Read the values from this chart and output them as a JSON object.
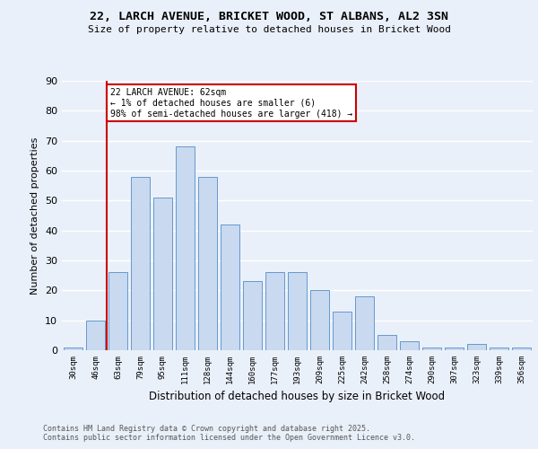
{
  "title1": "22, LARCH AVENUE, BRICKET WOOD, ST ALBANS, AL2 3SN",
  "title2": "Size of property relative to detached houses in Bricket Wood",
  "xlabel": "Distribution of detached houses by size in Bricket Wood",
  "ylabel": "Number of detached properties",
  "categories": [
    "30sqm",
    "46sqm",
    "63sqm",
    "79sqm",
    "95sqm",
    "111sqm",
    "128sqm",
    "144sqm",
    "160sqm",
    "177sqm",
    "193sqm",
    "209sqm",
    "225sqm",
    "242sqm",
    "258sqm",
    "274sqm",
    "290sqm",
    "307sqm",
    "323sqm",
    "339sqm",
    "356sqm"
  ],
  "values": [
    1,
    10,
    26,
    58,
    51,
    68,
    58,
    42,
    23,
    26,
    26,
    20,
    13,
    18,
    5,
    3,
    1,
    1,
    2,
    1,
    1
  ],
  "bar_color": "#c9d9f0",
  "bar_edge_color": "#6699cc",
  "vline_color": "#cc0000",
  "annotation_text": "22 LARCH AVENUE: 62sqm\n← 1% of detached houses are smaller (6)\n98% of semi-detached houses are larger (418) →",
  "annotation_box_color": "#cc0000",
  "ylim": [
    0,
    90
  ],
  "yticks": [
    0,
    10,
    20,
    30,
    40,
    50,
    60,
    70,
    80,
    90
  ],
  "footer_text": "Contains HM Land Registry data © Crown copyright and database right 2025.\nContains public sector information licensed under the Open Government Licence v3.0.",
  "background_color": "#eaf0fa",
  "grid_color": "#ffffff",
  "bar_width": 0.85
}
